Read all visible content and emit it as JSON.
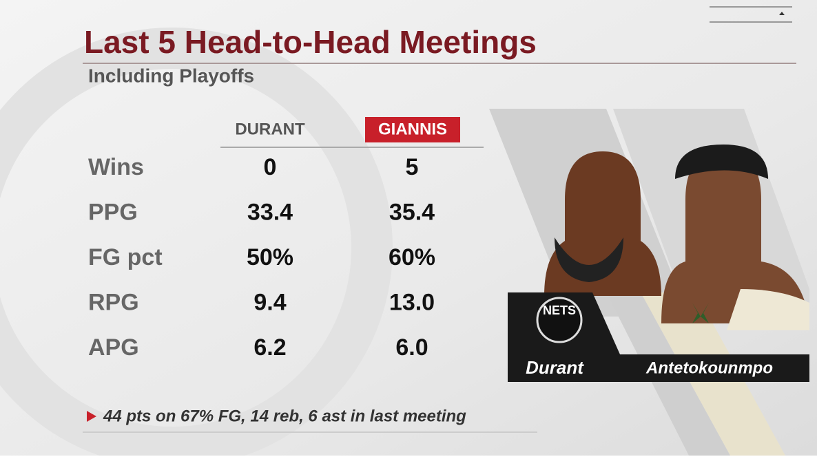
{
  "header": {
    "title": "Last 5 Head-to-Head Meetings",
    "subtitle": "Including Playoffs"
  },
  "table": {
    "columns": [
      "DURANT",
      "GIANNIS"
    ],
    "rows": [
      [
        "Wins",
        "0",
        "5"
      ],
      [
        "PPG",
        "33.4",
        "35.4"
      ],
      [
        "FG pct",
        "50%",
        "60%"
      ],
      [
        "RPG",
        "9.4",
        "13.0"
      ],
      [
        "APG",
        "6.2",
        "6.0"
      ]
    ]
  },
  "footnote": "44 pts on 67% FG, 14 reb, 6 ast in last meeting",
  "players": [
    {
      "name": "Durant",
      "logo": "NETS"
    },
    {
      "name": "Antetokounmpo"
    }
  ]
}
